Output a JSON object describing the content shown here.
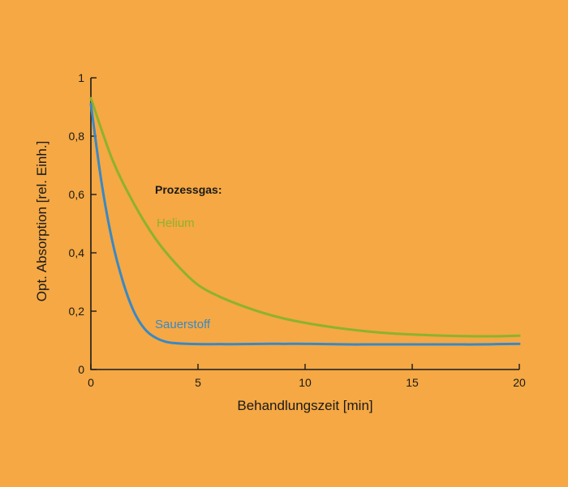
{
  "colors": {
    "background": "#F5A843",
    "axis": "#1a1a1a",
    "helium": "#8DB22E",
    "sauerstoff": "#3A88C4"
  },
  "chart_data": {
    "type": "line",
    "xlabel": "Behandlungszeit [min]",
    "ylabel": "Opt. Absorption [rel. Einh.]",
    "xlim": [
      0,
      20
    ],
    "ylim": [
      0,
      1
    ],
    "x_ticks": [
      0,
      5,
      10,
      15,
      20
    ],
    "x_tick_labels": [
      "0",
      "5",
      "10",
      "15",
      "20"
    ],
    "y_ticks": [
      0,
      0.2,
      0.4,
      0.6,
      0.8,
      1
    ],
    "y_tick_labels": [
      "0",
      "0,2",
      "0,4",
      "0,6",
      "0,8",
      "1"
    ],
    "grid": false,
    "legend_title": "Prozessgas:",
    "series": [
      {
        "name": "Helium",
        "color": "#8DB22E",
        "x": [
          0,
          1,
          2,
          3,
          4,
          5,
          6,
          7,
          8,
          9,
          10,
          11,
          12,
          13,
          14,
          15,
          16,
          17,
          18,
          19,
          20
        ],
        "y": [
          0.93,
          0.72,
          0.57,
          0.45,
          0.36,
          0.29,
          0.25,
          0.22,
          0.195,
          0.175,
          0.16,
          0.148,
          0.138,
          0.13,
          0.124,
          0.12,
          0.117,
          0.115,
          0.114,
          0.114,
          0.116
        ]
      },
      {
        "name": "Sauerstoff",
        "color": "#3A88C4",
        "x": [
          0,
          0.5,
          1,
          1.5,
          2,
          2.5,
          3,
          3.5,
          4,
          5,
          6,
          7,
          8,
          9,
          10,
          11,
          12,
          13,
          14,
          15,
          16,
          17,
          18,
          19,
          20
        ],
        "y": [
          0.91,
          0.64,
          0.44,
          0.3,
          0.2,
          0.14,
          0.11,
          0.095,
          0.09,
          0.087,
          0.087,
          0.087,
          0.088,
          0.088,
          0.088,
          0.087,
          0.086,
          0.086,
          0.086,
          0.086,
          0.086,
          0.086,
          0.086,
          0.087,
          0.088
        ]
      }
    ]
  }
}
